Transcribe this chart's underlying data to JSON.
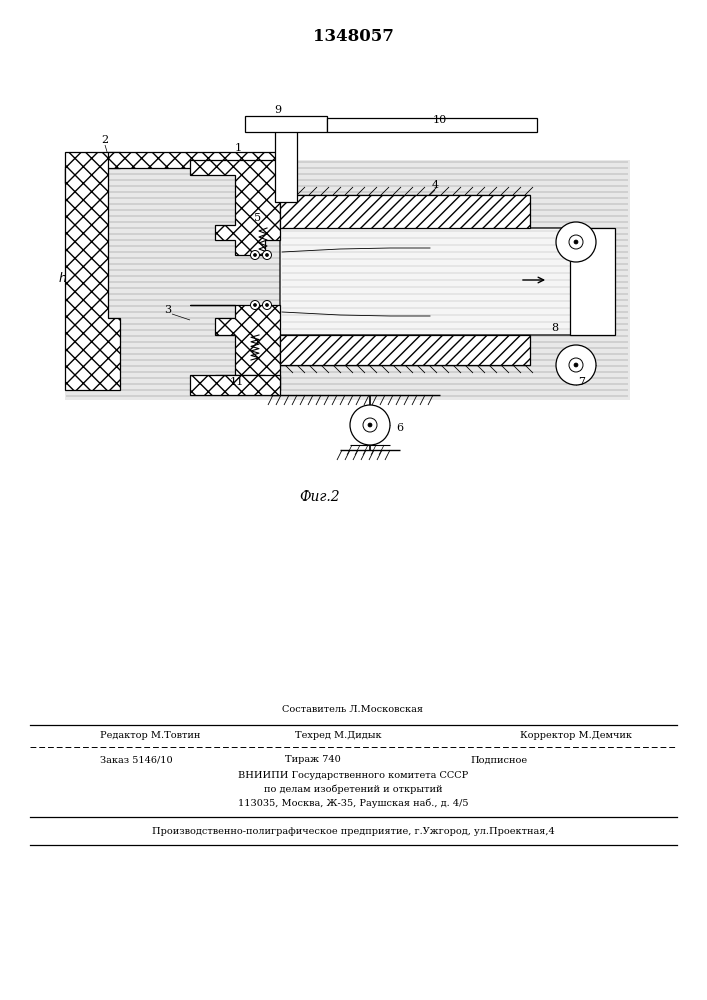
{
  "patent_number": "1348057",
  "fig_label": "Фиг.2",
  "background_color": "#ffffff",
  "line_color": "#000000",
  "footer": {
    "line1_left": "Редактор М.Товтин",
    "line1_center": "Составитель Л.Московская",
    "line1_right": "Корректор М.Демчик",
    "line2_center": "Техред М.Дидык",
    "line3_left": "Заказ 5146/10",
    "line3_center": "Тираж 740",
    "line3_right": "Подписное",
    "line4": "ВНИИПИ Государственного комитета СССР",
    "line5": "по делам изобретений и открытий",
    "line6": "113035, Москва, Ж-35, Раушская наб., д. 4/5",
    "line7": "Производственно-полиграфическое предприятие, г.Ужгород, ул.Проектная,4"
  }
}
